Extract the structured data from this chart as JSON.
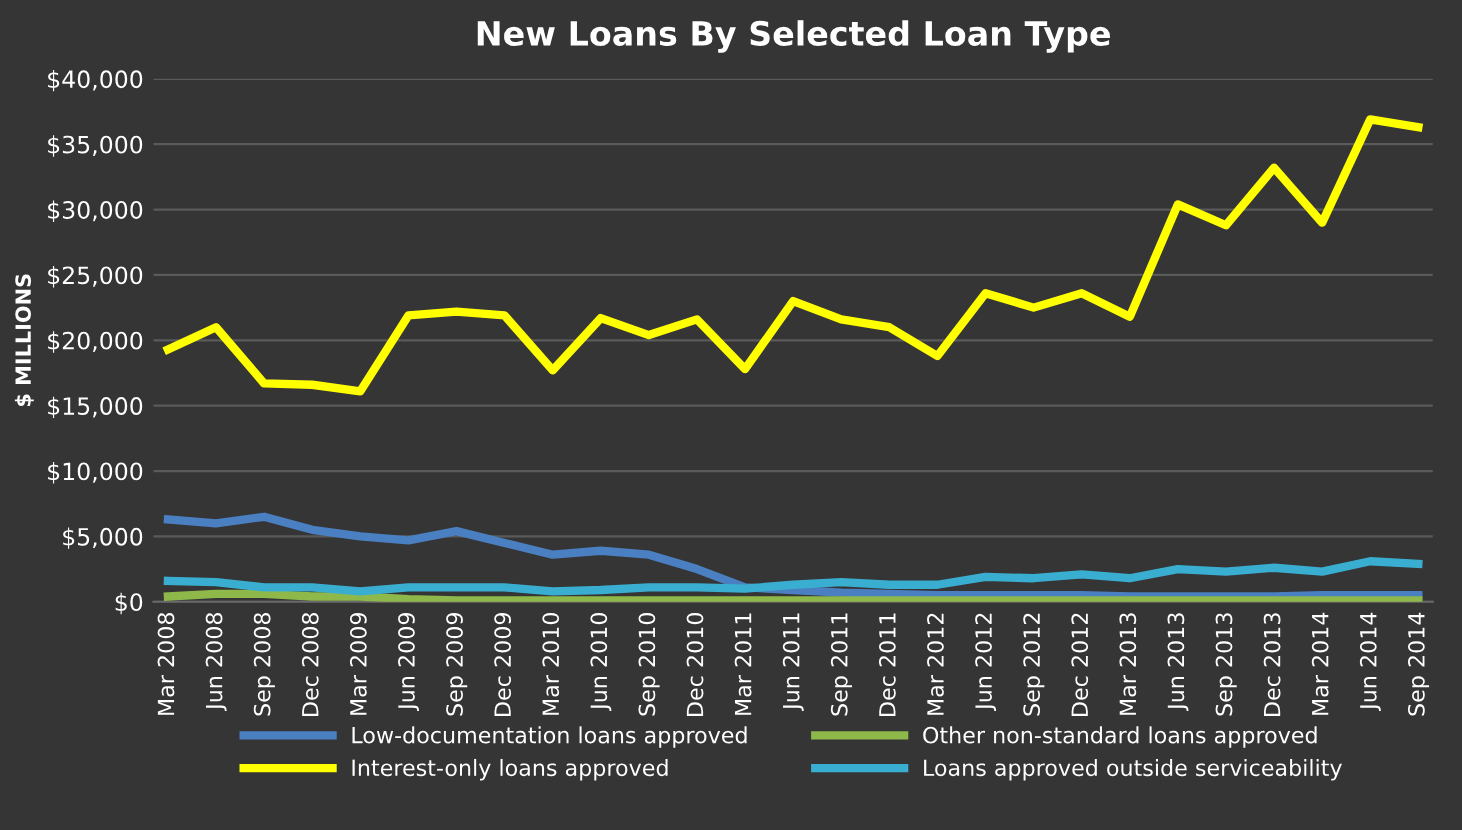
{
  "chart_data": {
    "type": "line",
    "title": "New Loans By Selected Loan Type",
    "ylabel": "$ MILLIONS",
    "categories": [
      "Mar 2008",
      "Jun 2008",
      "Sep 2008",
      "Dec 2008",
      "Mar 2009",
      "Jun 2009",
      "Sep 2009",
      "Dec 2009",
      "Mar 2010",
      "Jun 2010",
      "Sep 2010",
      "Dec 2010",
      "Mar 2011",
      "Jun 2011",
      "Sep 2011",
      "Dec 2011",
      "Mar 2012",
      "Jun 2012",
      "Sep 2012",
      "Dec 2012",
      "Mar 2013",
      "Jun 2013",
      "Sep 2013",
      "Dec 2013",
      "Mar 2014",
      "Jun 2014",
      "Sep 2014"
    ],
    "series": [
      {
        "name": "Low-documentation loans approved",
        "color": "#4a7fc1",
        "values": [
          6300,
          6000,
          6500,
          5500,
          5000,
          4700,
          5400,
          4500,
          3600,
          3900,
          3600,
          2500,
          1100,
          900,
          700,
          600,
          500,
          500,
          500,
          500,
          400,
          400,
          400,
          400,
          500,
          500,
          500
        ]
      },
      {
        "name": "Interest-only loans approved",
        "color": "#ffff00",
        "values": [
          19300,
          21000,
          16700,
          16600,
          16100,
          21900,
          22200,
          21900,
          17700,
          21700,
          20400,
          21600,
          17800,
          23000,
          21600,
          21000,
          18800,
          23600,
          22500,
          23600,
          21800,
          30400,
          28800,
          33200,
          29000,
          36900,
          36300
        ]
      },
      {
        "name": "Other non-standard loans approved",
        "color": "#8fb84a",
        "values": [
          400,
          600,
          600,
          400,
          400,
          200,
          100,
          100,
          100,
          100,
          100,
          100,
          100,
          100,
          100,
          100,
          100,
          100,
          100,
          100,
          100,
          100,
          100,
          100,
          100,
          100,
          100
        ]
      },
      {
        "name": "Loans approved outside serviceability",
        "color": "#3aaed0",
        "values": [
          1600,
          1500,
          1100,
          1100,
          800,
          1100,
          1100,
          1100,
          800,
          900,
          1100,
          1100,
          1000,
          1300,
          1500,
          1300,
          1300,
          1900,
          1800,
          2100,
          1800,
          2500,
          2300,
          2600,
          2300,
          3100,
          2900
        ]
      }
    ],
    "ylim": [
      0,
      40000
    ],
    "yticks": [
      {
        "value": 0,
        "label": "$0"
      },
      {
        "value": 5000,
        "label": "$5,000"
      },
      {
        "value": 10000,
        "label": "$10,000"
      },
      {
        "value": 15000,
        "label": "$15,000"
      },
      {
        "value": 20000,
        "label": "$20,000"
      },
      {
        "value": 25000,
        "label": "$25,000"
      },
      {
        "value": 30000,
        "label": "$30,000"
      },
      {
        "value": 35000,
        "label": "$35,000"
      },
      {
        "value": 40000,
        "label": "$40,000"
      }
    ],
    "grid": "y",
    "legend": "bottom",
    "marker": "none",
    "line_style": "solid"
  }
}
